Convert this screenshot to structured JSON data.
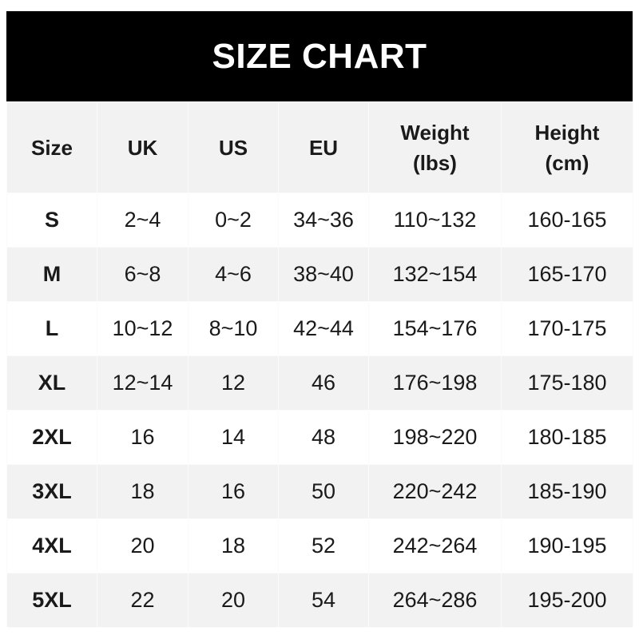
{
  "title": "SIZE CHART",
  "headers": [
    {
      "line1": "Size",
      "line2": ""
    },
    {
      "line1": "UK",
      "line2": ""
    },
    {
      "line1": "US",
      "line2": ""
    },
    {
      "line1": "EU",
      "line2": ""
    },
    {
      "line1": "Weight",
      "line2": "(lbs)"
    },
    {
      "line1": "Height",
      "line2": "(cm)"
    }
  ],
  "rows": [
    [
      "S",
      "2~4",
      "0~2",
      "34~36",
      "110~132",
      "160-165"
    ],
    [
      "M",
      "6~8",
      "4~6",
      "38~40",
      "132~154",
      "165-170"
    ],
    [
      "L",
      "10~12",
      "8~10",
      "42~44",
      "154~176",
      "170-175"
    ],
    [
      "XL",
      "12~14",
      "12",
      "46",
      "176~198",
      "175-180"
    ],
    [
      "2XL",
      "16",
      "14",
      "48",
      "198~220",
      "180-185"
    ],
    [
      "3XL",
      "18",
      "16",
      "50",
      "220~242",
      "185-190"
    ],
    [
      "4XL",
      "20",
      "18",
      "52",
      "242~264",
      "190-195"
    ],
    [
      "5XL",
      "22",
      "20",
      "54",
      "264~286",
      "195-200"
    ]
  ],
  "colors": {
    "title_bg": "#000000",
    "title_text": "#ffffff",
    "stripe": "#f2f2f2"
  }
}
